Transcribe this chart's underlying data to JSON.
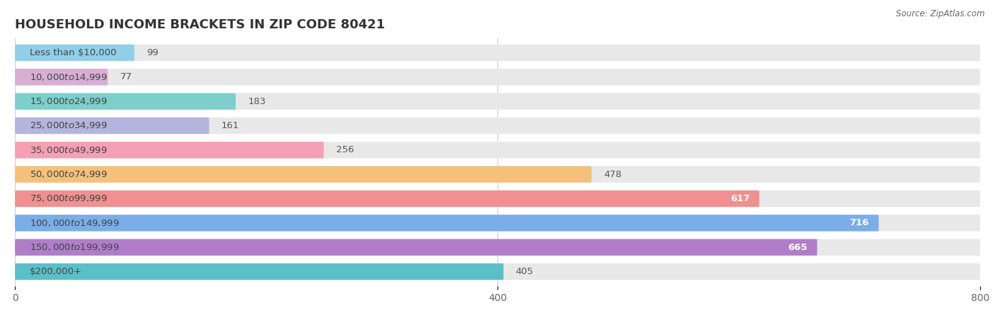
{
  "title": "HOUSEHOLD INCOME BRACKETS IN ZIP CODE 80421",
  "source": "Source: ZipAtlas.com",
  "categories": [
    "Less than $10,000",
    "$10,000 to $14,999",
    "$15,000 to $24,999",
    "$25,000 to $34,999",
    "$35,000 to $49,999",
    "$50,000 to $74,999",
    "$75,000 to $99,999",
    "$100,000 to $149,999",
    "$150,000 to $199,999",
    "$200,000+"
  ],
  "values": [
    99,
    77,
    183,
    161,
    256,
    478,
    617,
    716,
    665,
    405
  ],
  "bar_colors": [
    "#91cfe8",
    "#d8aed4",
    "#7dcfcb",
    "#b5b4de",
    "#f5a0b5",
    "#f5c07a",
    "#f09090",
    "#7aaee8",
    "#b07ec8",
    "#5bbfc8"
  ],
  "xlim": [
    0,
    800
  ],
  "xticks": [
    0,
    400,
    800
  ],
  "background_color": "#ffffff",
  "bar_background_color": "#e8e8e8",
  "title_fontsize": 13,
  "label_fontsize": 9.5,
  "tick_fontsize": 10,
  "bar_height": 0.68
}
